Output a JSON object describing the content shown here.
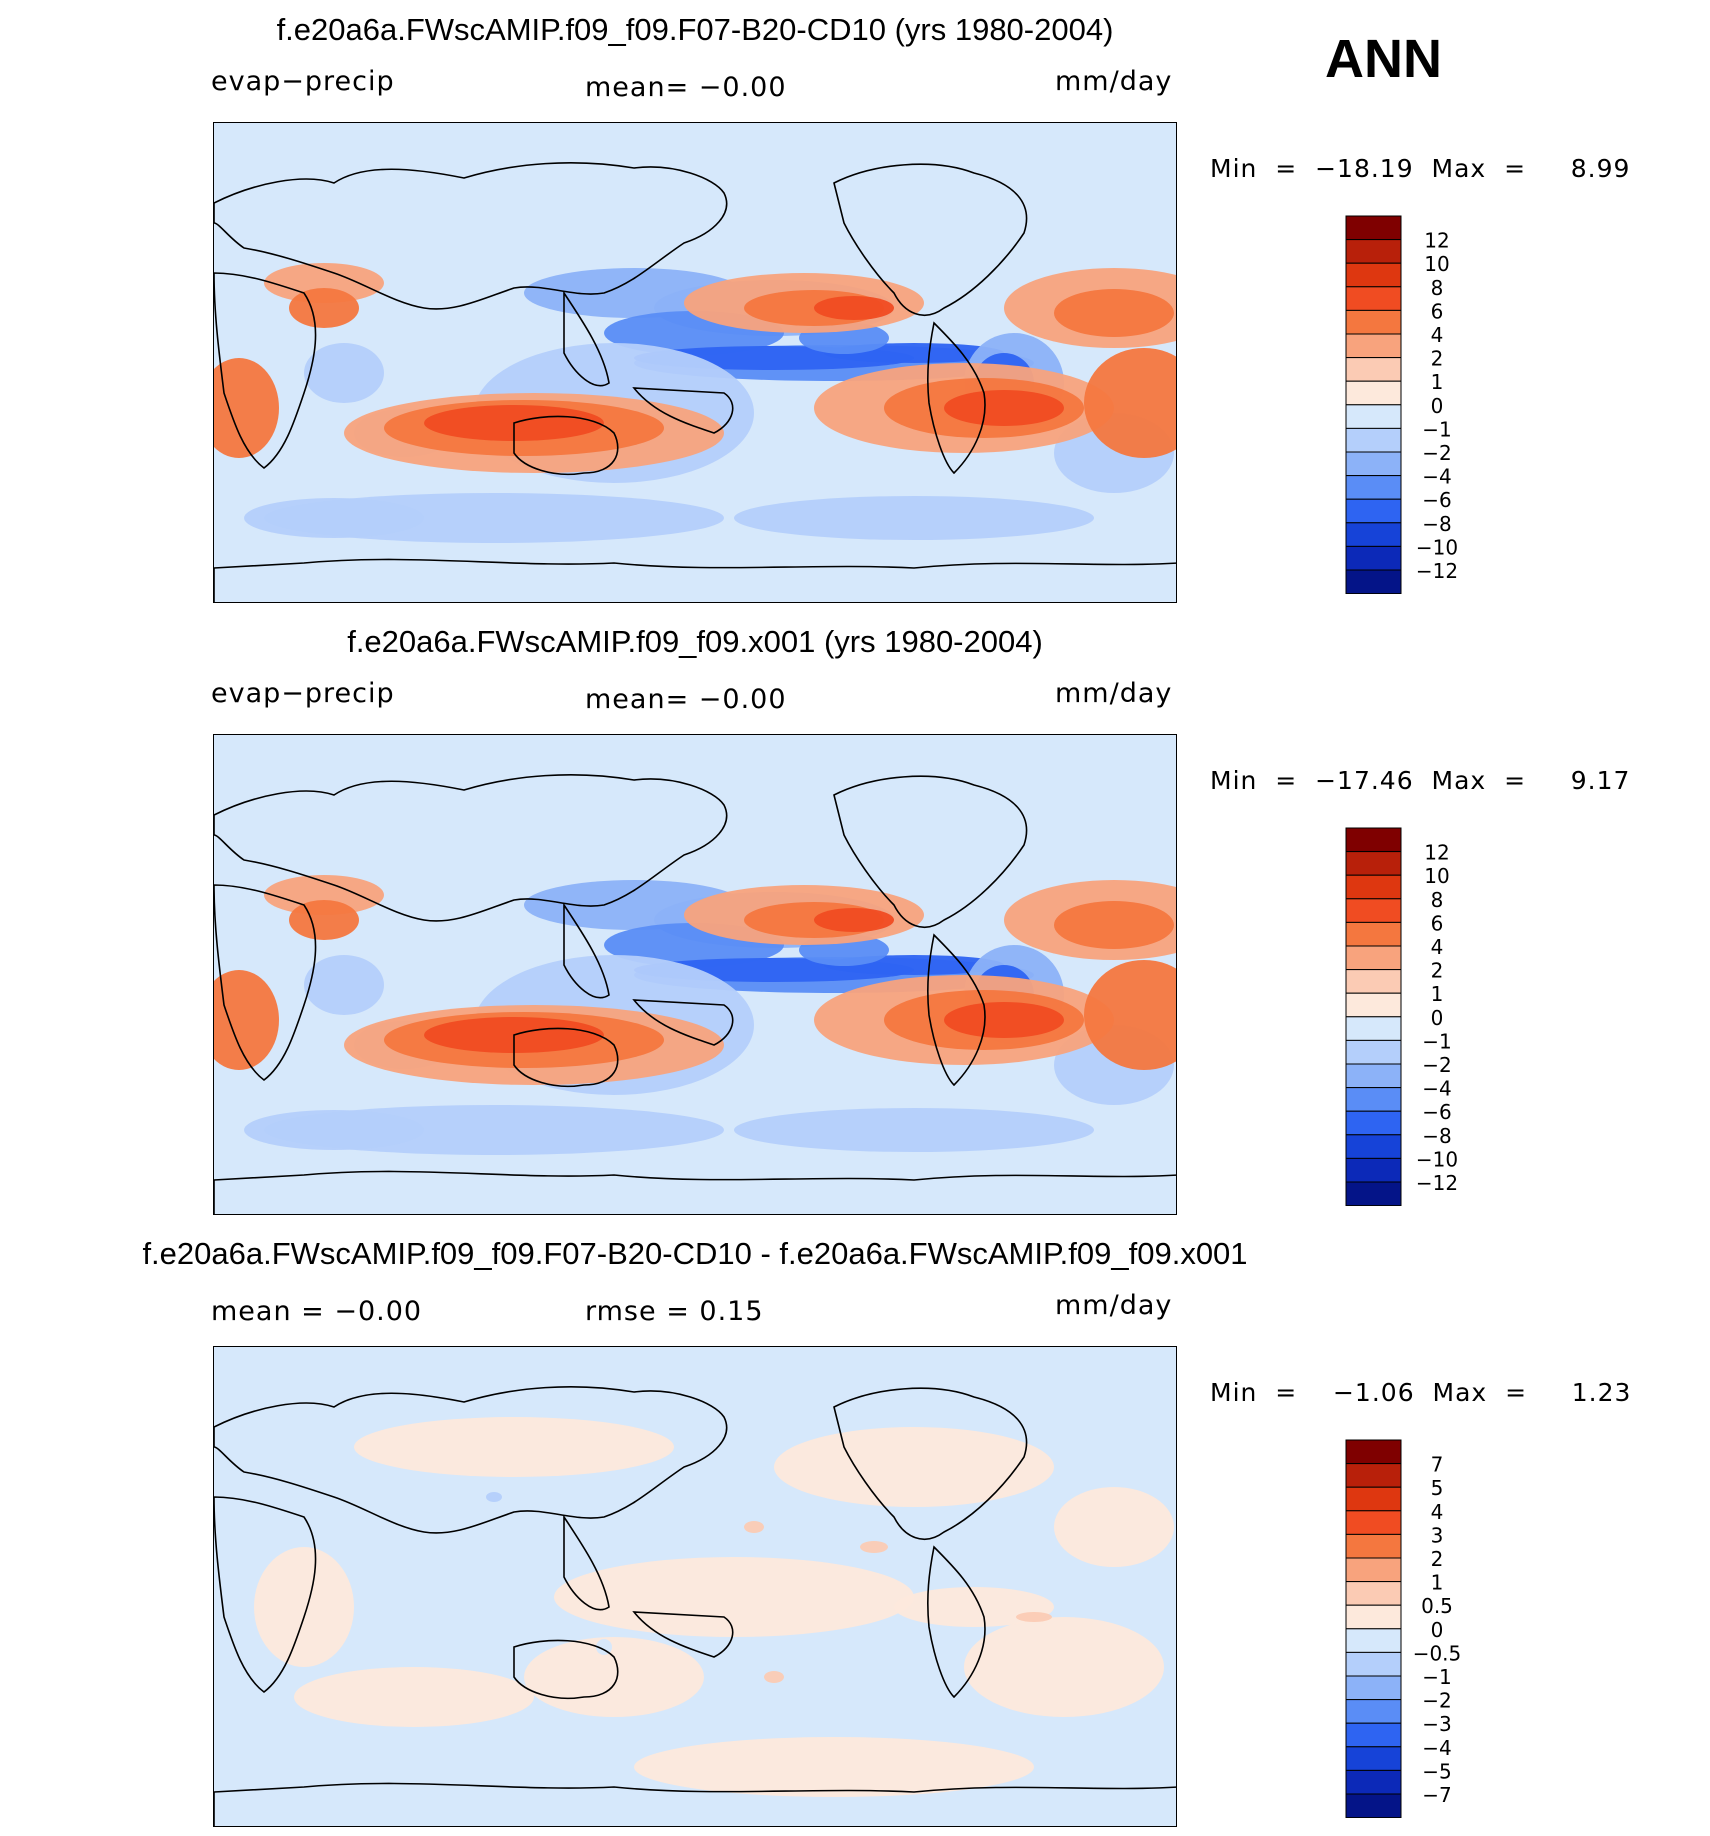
{
  "figure": {
    "season": "ANN"
  },
  "chart_data": [
    {
      "type": "heatmap",
      "title": "f.e20a6a.FWscAMIP.f09_f09.F07-B20-CD10 (yrs 1980-2004)",
      "variable": "evap−precip",
      "mean_text": "mean=   −0.00",
      "units": "mm/day",
      "stats_text": "Min  =  −18.19  Max  =     8.99",
      "min": -18.19,
      "max": 8.99,
      "colorbar": {
        "labels": [
          "12",
          "10",
          "8",
          "6",
          "4",
          "2",
          "1",
          "0",
          "−1",
          "−2",
          "−4",
          "−6",
          "−8",
          "−10",
          "−12"
        ],
        "colors": [
          "#7f0000",
          "#b8200a",
          "#de3710",
          "#f04c22",
          "#f4773f",
          "#f8a37d",
          "#fbcbb4",
          "#fde9dc",
          "#d6e8fb",
          "#b4cffb",
          "#8cb2f8",
          "#5a8df6",
          "#2e64f2",
          "#1643d8",
          "#0c29b8",
          "#041488"
        ]
      }
    },
    {
      "type": "heatmap",
      "title": "f.e20a6a.FWscAMIP.f09_f09.x001 (yrs 1980-2004)",
      "variable": "evap−precip",
      "mean_text": "mean=   −0.00",
      "units": "mm/day",
      "stats_text": "Min  =  −17.46  Max  =     9.17",
      "min": -17.46,
      "max": 9.17,
      "colorbar": {
        "labels": [
          "12",
          "10",
          "8",
          "6",
          "4",
          "2",
          "1",
          "0",
          "−1",
          "−2",
          "−4",
          "−6",
          "−8",
          "−10",
          "−12"
        ],
        "colors": [
          "#7f0000",
          "#b8200a",
          "#de3710",
          "#f04c22",
          "#f4773f",
          "#f8a37d",
          "#fbcbb4",
          "#fde9dc",
          "#d6e8fb",
          "#b4cffb",
          "#8cb2f8",
          "#5a8df6",
          "#2e64f2",
          "#1643d8",
          "#0c29b8",
          "#041488"
        ]
      }
    },
    {
      "type": "heatmap",
      "title": "f.e20a6a.FWscAMIP.f09_f09.F07-B20-CD10 - f.e20a6a.FWscAMIP.f09_f09.x001",
      "variable": "mean  =   −0.00",
      "mean_text": "rmse  =     0.15",
      "units": "mm/day",
      "stats_text": "Min  =    −1.06  Max  =     1.23",
      "min": -1.06,
      "max": 1.23,
      "colorbar": {
        "labels": [
          "7",
          "5",
          "4",
          "3",
          "2",
          "1",
          "0.5",
          "0",
          "−0.5",
          "−1",
          "−2",
          "−3",
          "−4",
          "−5",
          "−7"
        ],
        "colors": [
          "#7f0000",
          "#b8200a",
          "#de3710",
          "#f04c22",
          "#f4773f",
          "#f8a37d",
          "#fbcbb4",
          "#fde9dc",
          "#d6e8fb",
          "#b4cffb",
          "#8cb2f8",
          "#5a8df6",
          "#2e64f2",
          "#1643d8",
          "#0c29b8",
          "#041488"
        ]
      }
    }
  ]
}
